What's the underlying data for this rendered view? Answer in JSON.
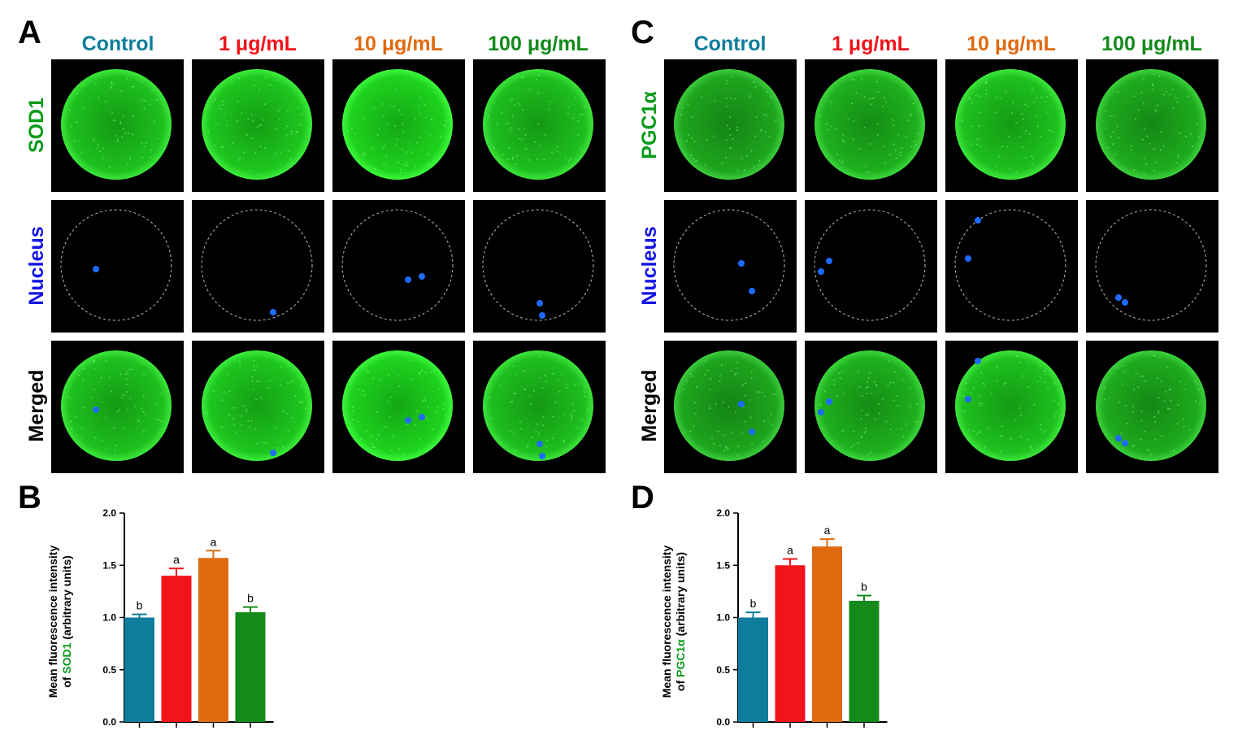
{
  "panels": {
    "A": "A",
    "B": "B",
    "C": "C",
    "D": "D"
  },
  "groups": [
    "Control",
    "1 μg/mL",
    "10 μg/mL",
    "100 μg/mL"
  ],
  "colors": {
    "control": "#0e7d9b",
    "g1": "#f2131b",
    "g10": "#e06a10",
    "g100": "#138a1a",
    "marker_green": "#0a9b1a",
    "nucleus_blue": "#1414e6"
  },
  "images_left": {
    "rows": [
      "SOD1",
      "Nucleus",
      "Merged"
    ]
  },
  "images_right": {
    "rows": [
      "PGC1α",
      "Nucleus",
      "Merged"
    ]
  },
  "chart_data": [
    {
      "type": "bar",
      "panel": "B",
      "categories": [
        "Control",
        "1 μg/mL",
        "10 μg/mL",
        "100 μg/mL"
      ],
      "values": [
        1.0,
        1.4,
        1.57,
        1.05
      ],
      "errors": [
        0.03,
        0.07,
        0.07,
        0.05
      ],
      "letters": [
        "b",
        "a",
        "a",
        "b"
      ],
      "ylabel_line1": "Mean fluorescence intensity",
      "ylabel_line2_prefix": "of ",
      "ylabel_marker": "SOD1",
      "ylabel_line2_suffix": " (arbitrary units)",
      "ylim": [
        0,
        2.0
      ],
      "yticks": [
        "0.0",
        "0.5",
        "1.0",
        "1.5",
        "2.0"
      ],
      "grid": false
    },
    {
      "type": "bar",
      "panel": "D",
      "categories": [
        "Control",
        "1 μg/mL",
        "10 μg/mL",
        "100 μg/mL"
      ],
      "values": [
        1.0,
        1.5,
        1.68,
        1.16
      ],
      "errors": [
        0.05,
        0.06,
        0.07,
        0.05
      ],
      "letters": [
        "b",
        "a",
        "a",
        "b"
      ],
      "ylabel_line1": "Mean fluorescence intensity",
      "ylabel_line2_prefix": "of ",
      "ylabel_marker": "PGC1α",
      "ylabel_line2_suffix": " (arbitrary units)",
      "ylim": [
        0,
        2.0
      ],
      "yticks": [
        "0.0",
        "0.5",
        "1.0",
        "1.5",
        "2.0"
      ],
      "grid": false
    }
  ]
}
